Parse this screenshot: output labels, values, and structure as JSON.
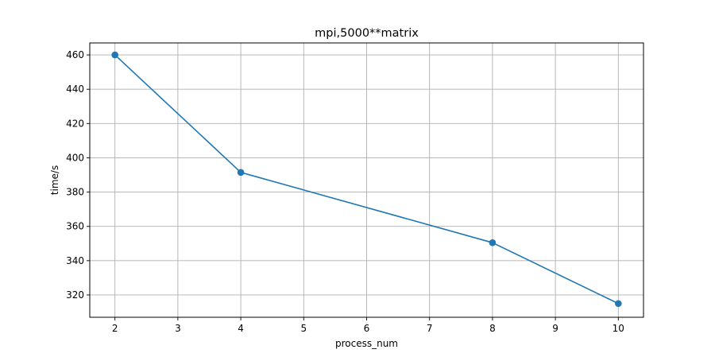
{
  "chart_data": {
    "type": "line",
    "title": "mpi,5000**matrix",
    "xlabel": "process_num",
    "ylabel": "time/s",
    "xlim": [
      1.6,
      10.4
    ],
    "ylim": [
      307,
      467
    ],
    "xticks": [
      2,
      3,
      4,
      5,
      6,
      7,
      8,
      9,
      10
    ],
    "yticks": [
      320,
      340,
      360,
      380,
      400,
      420,
      440,
      460
    ],
    "grid": true,
    "legend": "none",
    "series": [
      {
        "x": [
          2,
          4,
          8,
          10
        ],
        "y": [
          460,
          391.5,
          350.5,
          315
        ],
        "color": "#1f77b4",
        "marker": "circle"
      }
    ]
  }
}
